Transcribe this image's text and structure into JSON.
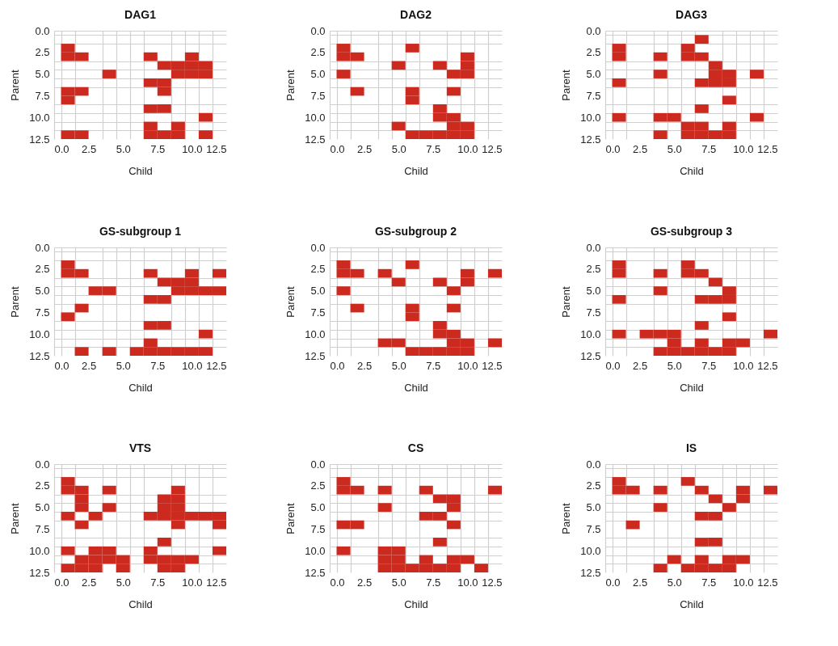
{
  "chart_data": [
    {
      "type": "scatter",
      "marker": "square",
      "title": "DAG1",
      "xlabel": "Child",
      "ylabel": "Parent",
      "grid": true,
      "xlim": [
        0,
        12.5
      ],
      "ylim": [
        12.5,
        0
      ],
      "xticks": [
        {
          "value": 0,
          "label": "0.0"
        },
        {
          "value": 0.5,
          "label": null
        },
        {
          "value": 1.5,
          "label": null
        },
        {
          "value": 2.5,
          "label": "2.5"
        },
        {
          "value": 3.5,
          "label": null
        },
        {
          "value": 4.5,
          "label": null
        },
        {
          "value": 5,
          "label": "5.0"
        },
        {
          "value": 5.5,
          "label": null
        },
        {
          "value": 6.5,
          "label": null
        },
        {
          "value": 7.5,
          "label": "7.5"
        },
        {
          "value": 8.5,
          "label": null
        },
        {
          "value": 9.5,
          "label": null
        },
        {
          "value": 10,
          "label": "10.0"
        },
        {
          "value": 10.5,
          "label": null
        },
        {
          "value": 11.5,
          "label": null
        },
        {
          "value": 12.5,
          "label": "12.5"
        }
      ],
      "yticks": [
        {
          "value": 0,
          "label": "0.0"
        },
        {
          "value": 0.5,
          "label": null
        },
        {
          "value": 1.5,
          "label": null
        },
        {
          "value": 2.5,
          "label": "2.5"
        },
        {
          "value": 3.5,
          "label": null
        },
        {
          "value": 4.5,
          "label": null
        },
        {
          "value": 5,
          "label": "5.0"
        },
        {
          "value": 5.5,
          "label": null
        },
        {
          "value": 6.5,
          "label": null
        },
        {
          "value": 7.5,
          "label": "7.5"
        },
        {
          "value": 8.5,
          "label": null
        },
        {
          "value": 9.5,
          "label": null
        },
        {
          "value": 10,
          "label": "10.0"
        },
        {
          "value": 10.5,
          "label": null
        },
        {
          "value": 11.5,
          "label": null
        },
        {
          "value": 12.5,
          "label": "12.5"
        }
      ],
      "series": [
        {
          "color": "#cc2a1f",
          "x": [
            1,
            1,
            2,
            7,
            10,
            8,
            9,
            10,
            11,
            4,
            9,
            10,
            11,
            7,
            8,
            1,
            2,
            8,
            1,
            7,
            8,
            11,
            7,
            9,
            1,
            2,
            7,
            8,
            9,
            11
          ],
          "values": [
            2,
            3,
            3,
            3,
            3,
            4,
            4,
            4,
            4,
            5,
            5,
            5,
            5,
            6,
            6,
            7,
            7,
            7,
            8,
            9,
            9,
            10,
            11,
            11,
            12,
            12,
            12,
            12,
            12,
            12
          ]
        }
      ]
    },
    {
      "type": "scatter",
      "marker": "square",
      "title": "DAG2",
      "xlabel": "Child",
      "ylabel": "Parent",
      "grid": true,
      "xlim": [
        0,
        12.5
      ],
      "ylim": [
        12.5,
        0
      ],
      "xticks": [
        {
          "value": 0,
          "label": "0.0"
        },
        {
          "value": 0.5,
          "label": null
        },
        {
          "value": 1.5,
          "label": null
        },
        {
          "value": 2.5,
          "label": "2.5"
        },
        {
          "value": 3.5,
          "label": null
        },
        {
          "value": 4.5,
          "label": null
        },
        {
          "value": 5,
          "label": "5.0"
        },
        {
          "value": 5.5,
          "label": null
        },
        {
          "value": 6.5,
          "label": null
        },
        {
          "value": 7.5,
          "label": "7.5"
        },
        {
          "value": 8.5,
          "label": null
        },
        {
          "value": 9.5,
          "label": null
        },
        {
          "value": 10,
          "label": "10.0"
        },
        {
          "value": 10.5,
          "label": null
        },
        {
          "value": 11.5,
          "label": null
        },
        {
          "value": 12.5,
          "label": "12.5"
        }
      ],
      "yticks": [
        {
          "value": 0,
          "label": "0.0"
        },
        {
          "value": 0.5,
          "label": null
        },
        {
          "value": 1.5,
          "label": null
        },
        {
          "value": 2.5,
          "label": "2.5"
        },
        {
          "value": 3.5,
          "label": null
        },
        {
          "value": 4.5,
          "label": null
        },
        {
          "value": 5,
          "label": "5.0"
        },
        {
          "value": 5.5,
          "label": null
        },
        {
          "value": 6.5,
          "label": null
        },
        {
          "value": 7.5,
          "label": "7.5"
        },
        {
          "value": 8.5,
          "label": null
        },
        {
          "value": 9.5,
          "label": null
        },
        {
          "value": 10,
          "label": "10.0"
        },
        {
          "value": 10.5,
          "label": null
        },
        {
          "value": 11.5,
          "label": null
        },
        {
          "value": 12.5,
          "label": "12.5"
        }
      ],
      "series": [
        {
          "color": "#cc2a1f",
          "x": [
            1,
            6,
            1,
            2,
            10,
            5,
            8,
            10,
            1,
            9,
            10,
            2,
            6,
            9,
            6,
            8,
            8,
            9,
            5,
            9,
            10,
            6,
            7,
            8,
            9,
            10
          ],
          "values": [
            2,
            2,
            3,
            3,
            3,
            4,
            4,
            4,
            5,
            5,
            5,
            7,
            7,
            7,
            8,
            9,
            10,
            10,
            11,
            11,
            11,
            12,
            12,
            12,
            12,
            12
          ]
        }
      ]
    },
    {
      "type": "scatter",
      "marker": "square",
      "title": "DAG3",
      "xlabel": "Child",
      "ylabel": "Parent",
      "grid": true,
      "xlim": [
        0,
        12.5
      ],
      "ylim": [
        12.5,
        0
      ],
      "xticks": [
        {
          "value": 0,
          "label": "0.0"
        },
        {
          "value": 0.5,
          "label": null
        },
        {
          "value": 1.5,
          "label": null
        },
        {
          "value": 2.5,
          "label": "2.5"
        },
        {
          "value": 3.5,
          "label": null
        },
        {
          "value": 4.5,
          "label": null
        },
        {
          "value": 5,
          "label": "5.0"
        },
        {
          "value": 5.5,
          "label": null
        },
        {
          "value": 6.5,
          "label": null
        },
        {
          "value": 7.5,
          "label": "7.5"
        },
        {
          "value": 8.5,
          "label": null
        },
        {
          "value": 9.5,
          "label": null
        },
        {
          "value": 10,
          "label": "10.0"
        },
        {
          "value": 10.5,
          "label": null
        },
        {
          "value": 11.5,
          "label": null
        },
        {
          "value": 12.5,
          "label": "12.5"
        }
      ],
      "yticks": [
        {
          "value": 0,
          "label": "0.0"
        },
        {
          "value": 0.5,
          "label": null
        },
        {
          "value": 1.5,
          "label": null
        },
        {
          "value": 2.5,
          "label": "2.5"
        },
        {
          "value": 3.5,
          "label": null
        },
        {
          "value": 4.5,
          "label": null
        },
        {
          "value": 5,
          "label": "5.0"
        },
        {
          "value": 5.5,
          "label": null
        },
        {
          "value": 6.5,
          "label": null
        },
        {
          "value": 7.5,
          "label": "7.5"
        },
        {
          "value": 8.5,
          "label": null
        },
        {
          "value": 9.5,
          "label": null
        },
        {
          "value": 10,
          "label": "10.0"
        },
        {
          "value": 10.5,
          "label": null
        },
        {
          "value": 11.5,
          "label": null
        },
        {
          "value": 12.5,
          "label": "12.5"
        }
      ],
      "series": [
        {
          "color": "#cc2a1f",
          "x": [
            7,
            1,
            6,
            1,
            4,
            6,
            7,
            8,
            4,
            8,
            9,
            11,
            1,
            7,
            8,
            9,
            9,
            7,
            1,
            4,
            5,
            11,
            6,
            7,
            9,
            4,
            6,
            7,
            8,
            9
          ],
          "values": [
            1,
            2,
            2,
            3,
            3,
            3,
            3,
            4,
            5,
            5,
            5,
            5,
            6,
            6,
            6,
            6,
            8,
            9,
            10,
            10,
            10,
            10,
            11,
            11,
            11,
            12,
            12,
            12,
            12,
            12
          ]
        }
      ]
    },
    {
      "type": "scatter",
      "marker": "square",
      "title": "GS-subgroup  1",
      "xlabel": "Child",
      "ylabel": "Parent",
      "grid": true,
      "xlim": [
        0,
        12.5
      ],
      "ylim": [
        12.5,
        0
      ],
      "xticks": [
        {
          "value": 0,
          "label": "0.0"
        },
        {
          "value": 0.5,
          "label": null
        },
        {
          "value": 1.5,
          "label": null
        },
        {
          "value": 2.5,
          "label": "2.5"
        },
        {
          "value": 3.5,
          "label": null
        },
        {
          "value": 4.5,
          "label": null
        },
        {
          "value": 5,
          "label": "5.0"
        },
        {
          "value": 5.5,
          "label": null
        },
        {
          "value": 6.5,
          "label": null
        },
        {
          "value": 7.5,
          "label": "7.5"
        },
        {
          "value": 8.5,
          "label": null
        },
        {
          "value": 9.5,
          "label": null
        },
        {
          "value": 10,
          "label": "10.0"
        },
        {
          "value": 10.5,
          "label": null
        },
        {
          "value": 11.5,
          "label": null
        },
        {
          "value": 12.5,
          "label": "12.5"
        }
      ],
      "yticks": [
        {
          "value": 0,
          "label": "0.0"
        },
        {
          "value": 0.5,
          "label": null
        },
        {
          "value": 1.5,
          "label": null
        },
        {
          "value": 2.5,
          "label": "2.5"
        },
        {
          "value": 3.5,
          "label": null
        },
        {
          "value": 4.5,
          "label": null
        },
        {
          "value": 5,
          "label": "5.0"
        },
        {
          "value": 5.5,
          "label": null
        },
        {
          "value": 6.5,
          "label": null
        },
        {
          "value": 7.5,
          "label": "7.5"
        },
        {
          "value": 8.5,
          "label": null
        },
        {
          "value": 9.5,
          "label": null
        },
        {
          "value": 10,
          "label": "10.0"
        },
        {
          "value": 10.5,
          "label": null
        },
        {
          "value": 11.5,
          "label": null
        },
        {
          "value": 12.5,
          "label": "12.5"
        }
      ],
      "series": [
        {
          "color": "#cc2a1f",
          "x": [
            1,
            1,
            2,
            7,
            10,
            12,
            8,
            9,
            10,
            3,
            4,
            9,
            10,
            11,
            12,
            7,
            8,
            2,
            1,
            7,
            8,
            11,
            7,
            2,
            4,
            6,
            7,
            8,
            9,
            10,
            11
          ],
          "values": [
            2,
            3,
            3,
            3,
            3,
            3,
            4,
            4,
            4,
            5,
            5,
            5,
            5,
            5,
            5,
            6,
            6,
            7,
            8,
            9,
            9,
            10,
            11,
            12,
            12,
            12,
            12,
            12,
            12,
            12,
            12
          ]
        }
      ]
    },
    {
      "type": "scatter",
      "marker": "square",
      "title": "GS-subgroup  2",
      "xlabel": "Child",
      "ylabel": "Parent",
      "grid": true,
      "xlim": [
        0,
        12.5
      ],
      "ylim": [
        12.5,
        0
      ],
      "xticks": [
        {
          "value": 0,
          "label": "0.0"
        },
        {
          "value": 0.5,
          "label": null
        },
        {
          "value": 1.5,
          "label": null
        },
        {
          "value": 2.5,
          "label": "2.5"
        },
        {
          "value": 3.5,
          "label": null
        },
        {
          "value": 4.5,
          "label": null
        },
        {
          "value": 5,
          "label": "5.0"
        },
        {
          "value": 5.5,
          "label": null
        },
        {
          "value": 6.5,
          "label": null
        },
        {
          "value": 7.5,
          "label": "7.5"
        },
        {
          "value": 8.5,
          "label": null
        },
        {
          "value": 9.5,
          "label": null
        },
        {
          "value": 10,
          "label": "10.0"
        },
        {
          "value": 10.5,
          "label": null
        },
        {
          "value": 11.5,
          "label": null
        },
        {
          "value": 12.5,
          "label": "12.5"
        }
      ],
      "yticks": [
        {
          "value": 0,
          "label": "0.0"
        },
        {
          "value": 0.5,
          "label": null
        },
        {
          "value": 1.5,
          "label": null
        },
        {
          "value": 2.5,
          "label": "2.5"
        },
        {
          "value": 3.5,
          "label": null
        },
        {
          "value": 4.5,
          "label": null
        },
        {
          "value": 5,
          "label": "5.0"
        },
        {
          "value": 5.5,
          "label": null
        },
        {
          "value": 6.5,
          "label": null
        },
        {
          "value": 7.5,
          "label": "7.5"
        },
        {
          "value": 8.5,
          "label": null
        },
        {
          "value": 9.5,
          "label": null
        },
        {
          "value": 10,
          "label": "10.0"
        },
        {
          "value": 10.5,
          "label": null
        },
        {
          "value": 11.5,
          "label": null
        },
        {
          "value": 12.5,
          "label": "12.5"
        }
      ],
      "series": [
        {
          "color": "#cc2a1f",
          "x": [
            1,
            6,
            1,
            2,
            4,
            10,
            12,
            5,
            8,
            10,
            1,
            9,
            2,
            6,
            9,
            6,
            8,
            8,
            9,
            4,
            5,
            9,
            10,
            12,
            6,
            7,
            8,
            9,
            10
          ],
          "values": [
            2,
            2,
            3,
            3,
            3,
            3,
            3,
            4,
            4,
            4,
            5,
            5,
            7,
            7,
            7,
            8,
            9,
            10,
            10,
            11,
            11,
            11,
            11,
            11,
            12,
            12,
            12,
            12,
            12
          ]
        }
      ]
    },
    {
      "type": "scatter",
      "marker": "square",
      "title": "GS-subgroup  3",
      "xlabel": "Child",
      "ylabel": "Parent",
      "grid": true,
      "xlim": [
        0,
        12.5
      ],
      "ylim": [
        12.5,
        0
      ],
      "xticks": [
        {
          "value": 0,
          "label": "0.0"
        },
        {
          "value": 0.5,
          "label": null
        },
        {
          "value": 1.5,
          "label": null
        },
        {
          "value": 2.5,
          "label": "2.5"
        },
        {
          "value": 3.5,
          "label": null
        },
        {
          "value": 4.5,
          "label": null
        },
        {
          "value": 5,
          "label": "5.0"
        },
        {
          "value": 5.5,
          "label": null
        },
        {
          "value": 6.5,
          "label": null
        },
        {
          "value": 7.5,
          "label": "7.5"
        },
        {
          "value": 8.5,
          "label": null
        },
        {
          "value": 9.5,
          "label": null
        },
        {
          "value": 10,
          "label": "10.0"
        },
        {
          "value": 10.5,
          "label": null
        },
        {
          "value": 11.5,
          "label": null
        },
        {
          "value": 12.5,
          "label": "12.5"
        }
      ],
      "yticks": [
        {
          "value": 0,
          "label": "0.0"
        },
        {
          "value": 0.5,
          "label": null
        },
        {
          "value": 1.5,
          "label": null
        },
        {
          "value": 2.5,
          "label": "2.5"
        },
        {
          "value": 3.5,
          "label": null
        },
        {
          "value": 4.5,
          "label": null
        },
        {
          "value": 5,
          "label": "5.0"
        },
        {
          "value": 5.5,
          "label": null
        },
        {
          "value": 6.5,
          "label": null
        },
        {
          "value": 7.5,
          "label": "7.5"
        },
        {
          "value": 8.5,
          "label": null
        },
        {
          "value": 9.5,
          "label": null
        },
        {
          "value": 10,
          "label": "10.0"
        },
        {
          "value": 10.5,
          "label": null
        },
        {
          "value": 11.5,
          "label": null
        },
        {
          "value": 12.5,
          "label": "12.5"
        }
      ],
      "series": [
        {
          "color": "#cc2a1f",
          "x": [
            1,
            6,
            1,
            4,
            6,
            7,
            8,
            4,
            9,
            1,
            7,
            8,
            9,
            9,
            7,
            1,
            3,
            4,
            5,
            12,
            5,
            7,
            9,
            10,
            4,
            5,
            6,
            7,
            8,
            9
          ],
          "values": [
            2,
            2,
            3,
            3,
            3,
            3,
            4,
            5,
            5,
            6,
            6,
            6,
            6,
            8,
            9,
            10,
            10,
            10,
            10,
            10,
            11,
            11,
            11,
            11,
            12,
            12,
            12,
            12,
            12,
            12
          ]
        }
      ]
    },
    {
      "type": "scatter",
      "marker": "square",
      "title": "VTS",
      "xlabel": "Child",
      "ylabel": "Parent",
      "grid": true,
      "xlim": [
        0,
        12.5
      ],
      "ylim": [
        12.5,
        0
      ],
      "xticks": [
        {
          "value": 0,
          "label": "0.0"
        },
        {
          "value": 0.5,
          "label": null
        },
        {
          "value": 1.5,
          "label": null
        },
        {
          "value": 2.5,
          "label": "2.5"
        },
        {
          "value": 3.5,
          "label": null
        },
        {
          "value": 4.5,
          "label": null
        },
        {
          "value": 5,
          "label": "5.0"
        },
        {
          "value": 5.5,
          "label": null
        },
        {
          "value": 6.5,
          "label": null
        },
        {
          "value": 7.5,
          "label": "7.5"
        },
        {
          "value": 8.5,
          "label": null
        },
        {
          "value": 9.5,
          "label": null
        },
        {
          "value": 10,
          "label": "10.0"
        },
        {
          "value": 10.5,
          "label": null
        },
        {
          "value": 11.5,
          "label": null
        },
        {
          "value": 12.5,
          "label": "12.5"
        }
      ],
      "yticks": [
        {
          "value": 0,
          "label": "0.0"
        },
        {
          "value": 0.5,
          "label": null
        },
        {
          "value": 1.5,
          "label": null
        },
        {
          "value": 2.5,
          "label": "2.5"
        },
        {
          "value": 3.5,
          "label": null
        },
        {
          "value": 4.5,
          "label": null
        },
        {
          "value": 5,
          "label": "5.0"
        },
        {
          "value": 5.5,
          "label": null
        },
        {
          "value": 6.5,
          "label": null
        },
        {
          "value": 7.5,
          "label": "7.5"
        },
        {
          "value": 8.5,
          "label": null
        },
        {
          "value": 9.5,
          "label": null
        },
        {
          "value": 10,
          "label": "10.0"
        },
        {
          "value": 10.5,
          "label": null
        },
        {
          "value": 11.5,
          "label": null
        },
        {
          "value": 12.5,
          "label": "12.5"
        }
      ],
      "series": [
        {
          "color": "#cc2a1f",
          "x": [
            1,
            1,
            2,
            4,
            9,
            2,
            8,
            9,
            2,
            4,
            8,
            9,
            1,
            3,
            7,
            8,
            9,
            10,
            11,
            12,
            2,
            9,
            12,
            8,
            1,
            3,
            4,
            7,
            12,
            2,
            3,
            4,
            5,
            7,
            8,
            9,
            10,
            1,
            2,
            3,
            5,
            8,
            9
          ],
          "values": [
            2,
            3,
            3,
            3,
            3,
            4,
            4,
            4,
            5,
            5,
            5,
            5,
            6,
            6,
            6,
            6,
            6,
            6,
            6,
            6,
            7,
            7,
            7,
            9,
            10,
            10,
            10,
            10,
            10,
            11,
            11,
            11,
            11,
            11,
            11,
            11,
            11,
            12,
            12,
            12,
            12,
            12,
            12
          ]
        }
      ]
    },
    {
      "type": "scatter",
      "marker": "square",
      "title": "CS",
      "xlabel": "Child",
      "ylabel": "Parent",
      "grid": true,
      "xlim": [
        0,
        12.5
      ],
      "ylim": [
        12.5,
        0
      ],
      "xticks": [
        {
          "value": 0,
          "label": "0.0"
        },
        {
          "value": 0.5,
          "label": null
        },
        {
          "value": 1.5,
          "label": null
        },
        {
          "value": 2.5,
          "label": "2.5"
        },
        {
          "value": 3.5,
          "label": null
        },
        {
          "value": 4.5,
          "label": null
        },
        {
          "value": 5,
          "label": "5.0"
        },
        {
          "value": 5.5,
          "label": null
        },
        {
          "value": 6.5,
          "label": null
        },
        {
          "value": 7.5,
          "label": "7.5"
        },
        {
          "value": 8.5,
          "label": null
        },
        {
          "value": 9.5,
          "label": null
        },
        {
          "value": 10,
          "label": "10.0"
        },
        {
          "value": 10.5,
          "label": null
        },
        {
          "value": 11.5,
          "label": null
        },
        {
          "value": 12.5,
          "label": "12.5"
        }
      ],
      "yticks": [
        {
          "value": 0,
          "label": "0.0"
        },
        {
          "value": 0.5,
          "label": null
        },
        {
          "value": 1.5,
          "label": null
        },
        {
          "value": 2.5,
          "label": "2.5"
        },
        {
          "value": 3.5,
          "label": null
        },
        {
          "value": 4.5,
          "label": null
        },
        {
          "value": 5,
          "label": "5.0"
        },
        {
          "value": 5.5,
          "label": null
        },
        {
          "value": 6.5,
          "label": null
        },
        {
          "value": 7.5,
          "label": "7.5"
        },
        {
          "value": 8.5,
          "label": null
        },
        {
          "value": 9.5,
          "label": null
        },
        {
          "value": 10,
          "label": "10.0"
        },
        {
          "value": 10.5,
          "label": null
        },
        {
          "value": 11.5,
          "label": null
        },
        {
          "value": 12.5,
          "label": "12.5"
        }
      ],
      "series": [
        {
          "color": "#cc2a1f",
          "x": [
            1,
            1,
            2,
            4,
            7,
            12,
            8,
            9,
            4,
            9,
            7,
            8,
            1,
            2,
            9,
            8,
            1,
            4,
            5,
            4,
            5,
            7,
            9,
            10,
            4,
            5,
            6,
            7,
            8,
            9,
            11
          ],
          "values": [
            2,
            3,
            3,
            3,
            3,
            3,
            4,
            4,
            5,
            5,
            6,
            6,
            7,
            7,
            7,
            9,
            10,
            10,
            10,
            11,
            11,
            11,
            11,
            11,
            12,
            12,
            12,
            12,
            12,
            12,
            12
          ]
        }
      ]
    },
    {
      "type": "scatter",
      "marker": "square",
      "title": "IS",
      "xlabel": "Child",
      "ylabel": "Parent",
      "grid": true,
      "xlim": [
        0,
        12.5
      ],
      "ylim": [
        12.5,
        0
      ],
      "xticks": [
        {
          "value": 0,
          "label": "0.0"
        },
        {
          "value": 0.5,
          "label": null
        },
        {
          "value": 1.5,
          "label": null
        },
        {
          "value": 2.5,
          "label": "2.5"
        },
        {
          "value": 3.5,
          "label": null
        },
        {
          "value": 4.5,
          "label": null
        },
        {
          "value": 5,
          "label": "5.0"
        },
        {
          "value": 5.5,
          "label": null
        },
        {
          "value": 6.5,
          "label": null
        },
        {
          "value": 7.5,
          "label": "7.5"
        },
        {
          "value": 8.5,
          "label": null
        },
        {
          "value": 9.5,
          "label": null
        },
        {
          "value": 10,
          "label": "10.0"
        },
        {
          "value": 10.5,
          "label": null
        },
        {
          "value": 11.5,
          "label": null
        },
        {
          "value": 12.5,
          "label": "12.5"
        }
      ],
      "yticks": [
        {
          "value": 0,
          "label": "0.0"
        },
        {
          "value": 0.5,
          "label": null
        },
        {
          "value": 1.5,
          "label": null
        },
        {
          "value": 2.5,
          "label": "2.5"
        },
        {
          "value": 3.5,
          "label": null
        },
        {
          "value": 4.5,
          "label": null
        },
        {
          "value": 5,
          "label": "5.0"
        },
        {
          "value": 5.5,
          "label": null
        },
        {
          "value": 6.5,
          "label": null
        },
        {
          "value": 7.5,
          "label": "7.5"
        },
        {
          "value": 8.5,
          "label": null
        },
        {
          "value": 9.5,
          "label": null
        },
        {
          "value": 10,
          "label": "10.0"
        },
        {
          "value": 10.5,
          "label": null
        },
        {
          "value": 11.5,
          "label": null
        },
        {
          "value": 12.5,
          "label": "12.5"
        }
      ],
      "series": [
        {
          "color": "#cc2a1f",
          "x": [
            1,
            6,
            1,
            2,
            4,
            7,
            10,
            12,
            8,
            10,
            4,
            9,
            7,
            8,
            2,
            7,
            8,
            5,
            7,
            9,
            10,
            4,
            6,
            7,
            8,
            9
          ],
          "values": [
            2,
            2,
            3,
            3,
            3,
            3,
            3,
            3,
            4,
            4,
            5,
            5,
            6,
            6,
            7,
            9,
            9,
            11,
            11,
            11,
            11,
            12,
            12,
            12,
            12,
            12
          ]
        }
      ]
    }
  ]
}
